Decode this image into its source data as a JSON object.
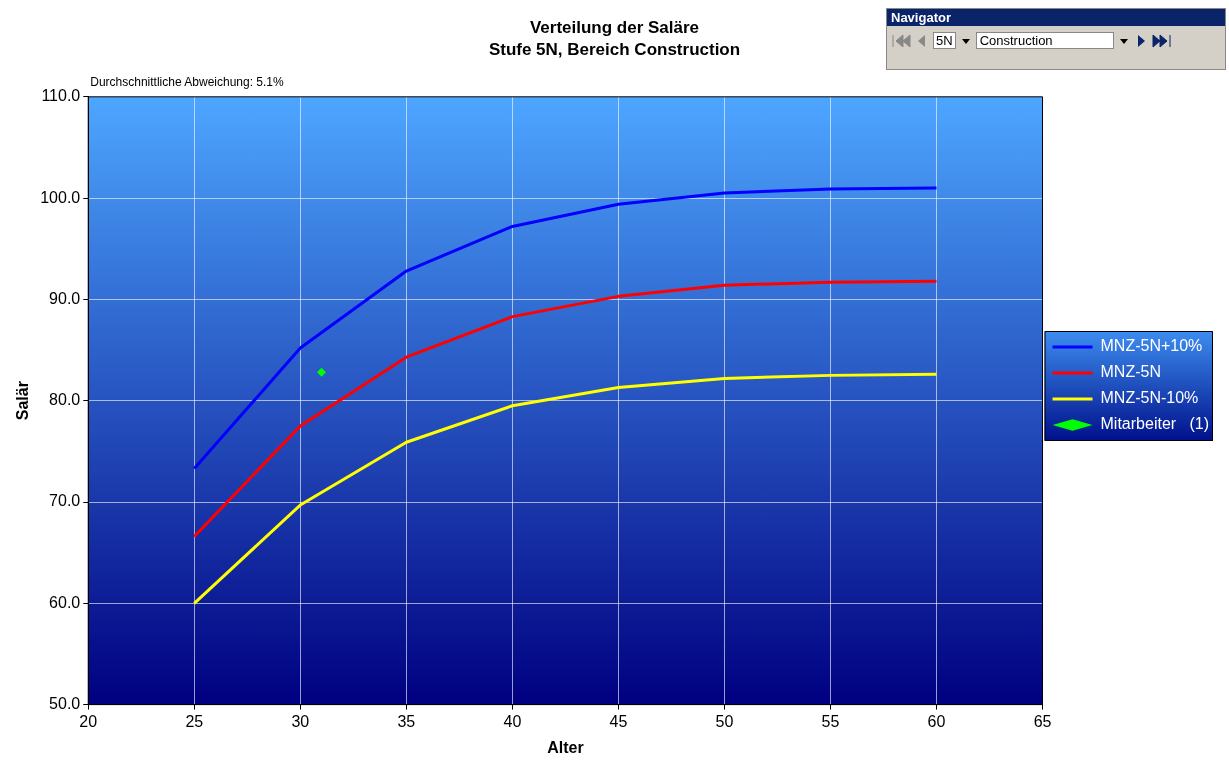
{
  "chart_data": {
    "type": "line",
    "title": "Verteilung der Saläre",
    "subtitle": "Stufe 5N, Bereich Construction",
    "xlabel": "Alter",
    "ylabel": "Salär",
    "annotations": [
      "Durchschnittliche Abweichung: 5.1%",
      "Navigator",
      "5N",
      "Construction"
    ],
    "x": [
      25,
      30,
      35,
      40,
      45,
      50,
      55,
      60
    ],
    "series": [
      {
        "name": "MNZ-5N+10%",
        "color": "#0000ff",
        "values": [
          73.3,
          85.2,
          92.8,
          97.2,
          99.4,
          100.5,
          100.9,
          101.0
        ]
      },
      {
        "name": "MNZ-5N",
        "color": "#ff0000",
        "values": [
          66.6,
          77.5,
          84.3,
          88.3,
          90.3,
          91.4,
          91.7,
          91.8
        ]
      },
      {
        "name": "MNZ-5N-10%",
        "color": "#ffff00",
        "values": [
          60.0,
          69.7,
          75.9,
          79.5,
          81.3,
          82.2,
          82.5,
          82.6
        ]
      },
      {
        "name": "Mitarbeiter   (1)",
        "type": "scatter",
        "marker": "diamond",
        "color": "#00ff00",
        "x": [
          31
        ],
        "values": [
          82.8
        ]
      }
    ],
    "xlim": [
      20,
      65
    ],
    "xticks": [
      20,
      25,
      30,
      35,
      40,
      45,
      50,
      55,
      60,
      65
    ],
    "ylim": [
      50,
      110
    ],
    "yticks": [
      {
        "value": 50,
        "label": "50.0"
      },
      {
        "value": 60,
        "label": "60.0"
      },
      {
        "value": 70,
        "label": "70.0"
      },
      {
        "value": 80,
        "label": "80.0"
      },
      {
        "value": 90,
        "label": "90.0"
      },
      {
        "value": 100,
        "label": "100.0"
      },
      {
        "value": 110,
        "label": "110.0"
      }
    ],
    "grid": true,
    "legend": "right",
    "marker": "none",
    "line_style": "solid"
  }
}
